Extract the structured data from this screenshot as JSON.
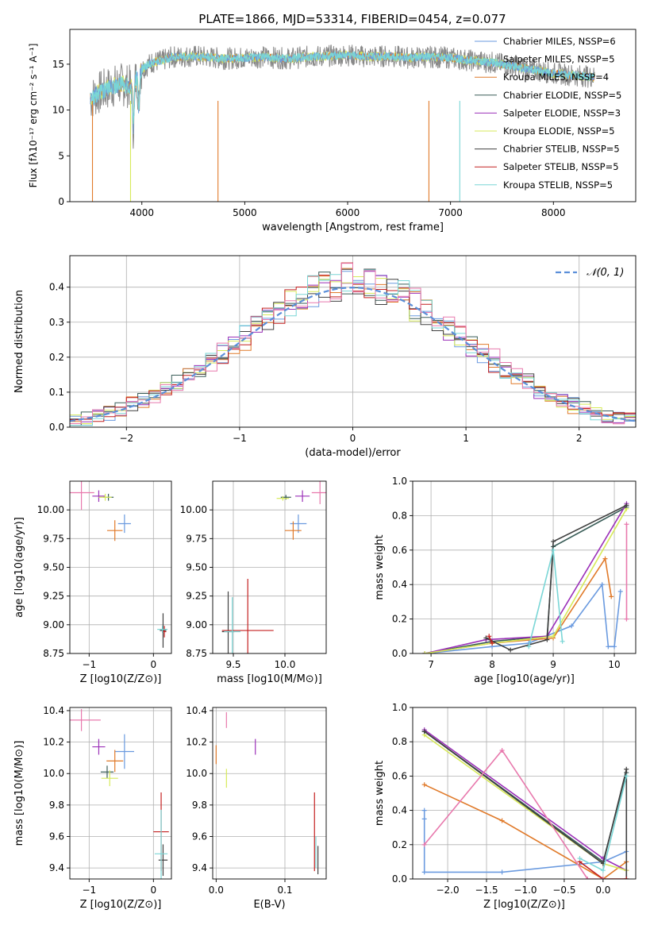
{
  "figure_title": "PLATE=1866, MJD=53314, FIBERID=0454, z=0.077",
  "colors": [
    "#6a9adf",
    "#e07a2a",
    "#3a5d58",
    "#9b30b8",
    "#d7ea5a",
    "#404040",
    "#c42020",
    "#7ad6d6",
    "#e879ad",
    "#888888"
  ],
  "chart_data": [
    {
      "id": "spectrum",
      "type": "line",
      "title": "PLATE=1866, MJD=53314, FIBERID=0454, z=0.077",
      "xlabel": "wavelength [Angstrom, rest frame]",
      "ylabel": "Flux [fλ10⁻¹⁷ erg cm⁻² s⁻¹ A⁻¹]",
      "xlim": [
        3300,
        8800
      ],
      "ylim": [
        0,
        18.8
      ],
      "xticks": [
        4000,
        5000,
        6000,
        7000,
        8000
      ],
      "yticks": [
        0,
        5,
        10,
        15
      ],
      "legend_position": "upper right",
      "legend": [
        "Chabrier MILES, N_SSP=6",
        "Salpeter MILES, N_SSP=5",
        "Kroupa MILES, N_SSP=4",
        "Chabrier ELODIE, N_SSP=5",
        "Salpeter ELODIE, N_SSP=3",
        "Kroupa ELODIE, N_SSP=5",
        "Chabrier STELIB, N_SSP=5",
        "Salpeter STELIB, N_SSP=5",
        "Kroupa STELIB, N_SSP=5"
      ],
      "data_x": [
        3400,
        3500,
        3600,
        3700,
        3800,
        3900,
        4000,
        4100,
        4200,
        4300,
        4400,
        4500,
        4600,
        4700,
        4800,
        5000,
        5200,
        5400,
        5600,
        5800,
        6000,
        6200,
        6400,
        6600,
        6800,
        7000,
        7200,
        7400,
        7600,
        7800,
        8000,
        8200,
        8400,
        8800
      ],
      "data_y": [
        10.5,
        11.2,
        12.0,
        12.5,
        12.8,
        12.5,
        14.5,
        15.2,
        15.4,
        15.8,
        15.8,
        15.9,
        15.8,
        15.7,
        15.6,
        15.7,
        15.8,
        15.6,
        15.8,
        15.9,
        16.0,
        15.8,
        15.9,
        15.7,
        15.8,
        15.7,
        15.4,
        15.2,
        14.8,
        14.4,
        14.0,
        13.8,
        13.6,
        13.5
      ],
      "notes_xlim": [
        3400,
        8400
      ]
    },
    {
      "id": "residuals",
      "type": "bar",
      "xlabel": "(data-model)/error",
      "ylabel": "Normed distribution",
      "xlim": [
        -2.5,
        2.5
      ],
      "ylim": [
        0,
        0.49
      ],
      "xticks": [
        -2,
        -1,
        0,
        1,
        2
      ],
      "yticks": [
        0.0,
        0.1,
        0.2,
        0.3,
        0.4
      ],
      "legend": [
        "𝒩(0, 1)"
      ],
      "legend_position": "upper right",
      "bin_width": 0.1
    },
    {
      "id": "age_vs_Z",
      "type": "scatter",
      "xlabel": "Z [log10(Z/Z⊙)]",
      "ylabel": "age  [log10(age/yr)]",
      "xlim": [
        -1.3,
        0.28
      ],
      "ylim": [
        8.75,
        10.25
      ],
      "xticks": [
        -1,
        0
      ],
      "yticks": [
        8.75,
        9.0,
        9.25,
        9.5,
        9.75,
        10.0
      ],
      "points": [
        {
          "x": -0.45,
          "y": 9.88,
          "xerr": 0.1,
          "yerr": 0.08
        },
        {
          "x": -0.6,
          "y": 9.82,
          "xerr": 0.12,
          "yerr": 0.09
        },
        {
          "x": -0.7,
          "y": 10.11,
          "xerr": 0.08,
          "yerr": 0.03
        },
        {
          "x": -0.85,
          "y": 10.12,
          "xerr": 0.1,
          "yerr": 0.05
        },
        {
          "x": -0.75,
          "y": 10.11,
          "xerr": 0.1,
          "yerr": 0.03
        },
        {
          "x": 0.15,
          "y": 8.95,
          "xerr": 0.05,
          "yerr": 0.15
        },
        {
          "x": 0.17,
          "y": 8.94,
          "xerr": 0.03,
          "yerr": 0.05
        },
        {
          "x": 0.14,
          "y": 8.96,
          "xerr": 0.08,
          "yerr": 0.03
        },
        {
          "x": -1.12,
          "y": 10.15,
          "xerr": 0.2,
          "yerr": 0.15
        }
      ]
    },
    {
      "id": "age_vs_mass",
      "type": "scatter",
      "xlabel": "mass [log10(M/M⊙)]",
      "ylabel": "",
      "xlim": [
        9.3,
        10.4
      ],
      "ylim": [
        8.75,
        10.25
      ],
      "xticks": [
        9.5,
        10.0
      ],
      "yticks": [
        8.75,
        9.0,
        9.25,
        9.5,
        9.75,
        10.0
      ],
      "points": [
        {
          "x": 10.13,
          "y": 9.88,
          "xerr": 0.08,
          "yerr": 0.08
        },
        {
          "x": 10.08,
          "y": 9.82,
          "xerr": 0.08,
          "yerr": 0.08
        },
        {
          "x": 10.01,
          "y": 10.11,
          "xerr": 0.05,
          "yerr": 0.02
        },
        {
          "x": 10.17,
          "y": 10.12,
          "xerr": 0.07,
          "yerr": 0.05
        },
        {
          "x": 9.98,
          "y": 10.1,
          "xerr": 0.06,
          "yerr": 0.02
        },
        {
          "x": 9.45,
          "y": 8.94,
          "xerr": 0.06,
          "yerr": 0.35
        },
        {
          "x": 9.64,
          "y": 8.95,
          "xerr": 0.25,
          "yerr": 0.45
        },
        {
          "x": 9.49,
          "y": 8.94,
          "xerr": 0.08,
          "yerr": 0.3
        },
        {
          "x": 10.34,
          "y": 10.15,
          "xerr": 0.08,
          "yerr": 0.1
        }
      ]
    },
    {
      "id": "mass_weight_vs_age",
      "type": "line",
      "xlabel": "age  [log10(age/yr)]",
      "ylabel": "mass weight",
      "xlim": [
        6.7,
        10.35
      ],
      "ylim": [
        0,
        1.0
      ],
      "xticks": [
        7,
        8,
        9,
        10
      ],
      "yticks": [
        0.0,
        0.2,
        0.4,
        0.6,
        0.8,
        1.0
      ],
      "series": [
        {
          "x": [
            6.9,
            8.0,
            8.6,
            9.3,
            9.8,
            9.9,
            10.0,
            10.1
          ],
          "y": [
            0.0,
            0.04,
            0.06,
            0.16,
            0.4,
            0.04,
            0.04,
            0.36
          ]
        },
        {
          "x": [
            6.9,
            8.0,
            9.0,
            9.85,
            9.95
          ],
          "y": [
            0.0,
            0.06,
            0.09,
            0.55,
            0.33
          ]
        },
        {
          "x": [
            6.9,
            8.0,
            8.9,
            9.0,
            10.2
          ],
          "y": [
            0.0,
            0.07,
            0.1,
            0.62,
            0.85
          ]
        },
        {
          "x": [
            6.9,
            7.9,
            8.9,
            10.2
          ],
          "y": [
            0.0,
            0.08,
            0.1,
            0.87
          ]
        },
        {
          "x": [
            6.9,
            8.0,
            9.0,
            10.2
          ],
          "y": [
            0.0,
            0.06,
            0.1,
            0.84
          ]
        },
        {
          "x": [
            7.9,
            8.3,
            8.9,
            9.0,
            10.2
          ],
          "y": [
            0.09,
            0.02,
            0.08,
            0.65,
            0.86
          ]
        },
        {
          "x": [
            7.95,
            8.0
          ],
          "y": [
            0.1,
            0.06
          ]
        },
        {
          "x": [
            8.6,
            9.0,
            9.15
          ],
          "y": [
            0.04,
            0.6,
            0.07
          ]
        },
        {
          "x": [
            10.2,
            10.2
          ],
          "y": [
            0.75,
            0.2
          ]
        }
      ]
    },
    {
      "id": "mass_vs_Z",
      "type": "scatter",
      "xlabel": "Z [log10(Z/Z⊙)]",
      "ylabel": "mass [log10(M/M⊙)]",
      "xlim": [
        -1.3,
        0.28
      ],
      "ylim": [
        9.33,
        10.42
      ],
      "xticks": [
        -1,
        0
      ],
      "yticks": [
        9.4,
        9.6,
        9.8,
        10.0,
        10.2,
        10.4
      ],
      "points": [
        {
          "x": -0.45,
          "y": 10.14,
          "xerr": 0.15,
          "yerr": 0.11
        },
        {
          "x": -0.6,
          "y": 10.08,
          "xerr": 0.13,
          "yerr": 0.07
        },
        {
          "x": -0.72,
          "y": 10.01,
          "xerr": 0.1,
          "yerr": 0.04
        },
        {
          "x": -0.85,
          "y": 10.17,
          "xerr": 0.1,
          "yerr": 0.05
        },
        {
          "x": -0.68,
          "y": 9.97,
          "xerr": 0.13,
          "yerr": 0.05
        },
        {
          "x": 0.15,
          "y": 9.45,
          "xerr": 0.07,
          "yerr": 0.1
        },
        {
          "x": 0.12,
          "y": 9.63,
          "xerr": 0.12,
          "yerr": 0.25
        },
        {
          "x": 0.12,
          "y": 9.49,
          "xerr": 0.1,
          "yerr": 0.28
        },
        {
          "x": -1.12,
          "y": 10.34,
          "xerr": 0.3,
          "yerr": 0.07
        }
      ]
    },
    {
      "id": "mass_vs_EBV",
      "type": "scatter",
      "xlabel": "E(B-V)",
      "ylabel": "",
      "xlim": [
        -0.005,
        0.16
      ],
      "ylim": [
        9.33,
        10.42
      ],
      "xticks": [
        0.0,
        0.1
      ],
      "yticks": [
        9.4,
        9.6,
        9.8,
        10.0,
        10.2,
        10.4
      ],
      "points": [
        {
          "x": 0.0,
          "y": 10.12,
          "xerr": 0,
          "yerr": 0.06
        },
        {
          "x": 0.015,
          "y": 10.34,
          "xerr": 0,
          "yerr": 0.05
        },
        {
          "x": 0.057,
          "y": 10.17,
          "xerr": 0,
          "yerr": 0.05
        },
        {
          "x": 0.015,
          "y": 9.97,
          "xerr": 0,
          "yerr": 0.06
        },
        {
          "x": 0.148,
          "y": 9.45,
          "xerr": 0,
          "yerr": 0.09
        },
        {
          "x": 0.143,
          "y": 9.63,
          "xerr": 0,
          "yerr": 0.25
        },
        {
          "x": 0.145,
          "y": 9.5,
          "xerr": 0,
          "yerr": 0.1
        }
      ]
    },
    {
      "id": "mass_weight_vs_Z",
      "type": "line",
      "xlabel": "Z [log10(Z/Z⊙)]",
      "ylabel": "mass weight",
      "xlim": [
        -2.45,
        0.42
      ],
      "ylim": [
        0,
        1.0
      ],
      "xticks": [
        -2.0,
        -1.5,
        -1.0,
        -0.5,
        0.0
      ],
      "yticks": [
        0.0,
        0.2,
        0.4,
        0.6,
        0.8,
        1.0
      ],
      "series": [
        {
          "x": [
            -2.3,
            -2.3,
            -2.3,
            -1.3,
            0.0,
            0.3
          ],
          "y": [
            0.4,
            0.35,
            0.04,
            0.04,
            0.1,
            0.16
          ]
        },
        {
          "x": [
            -2.3,
            -1.3,
            0.0,
            0.3
          ],
          "y": [
            0.55,
            0.34,
            0.0,
            0.1
          ]
        },
        {
          "x": [
            -2.3,
            0.0,
            0.3
          ],
          "y": [
            0.86,
            0.1,
            0.62
          ]
        },
        {
          "x": [
            -2.3,
            0.0,
            0.3
          ],
          "y": [
            0.87,
            0.12,
            0.05
          ]
        },
        {
          "x": [
            -2.3,
            0.0,
            0.3
          ],
          "y": [
            0.84,
            0.09,
            0.05
          ]
        },
        {
          "x": [
            -2.3,
            0.0,
            0.3,
            0.3
          ],
          "y": [
            0.86,
            0.09,
            0.64,
            0.0
          ]
        },
        {
          "x": [
            -0.3,
            0.0,
            0.3
          ],
          "y": [
            0.1,
            0.0,
            0.0
          ]
        },
        {
          "x": [
            -0.3,
            0.0,
            0.3
          ],
          "y": [
            0.12,
            0.05,
            0.6
          ]
        },
        {
          "x": [
            -2.3,
            -1.3,
            -0.2,
            0.0
          ],
          "y": [
            0.2,
            0.75,
            0.0,
            0.0
          ]
        }
      ]
    }
  ]
}
